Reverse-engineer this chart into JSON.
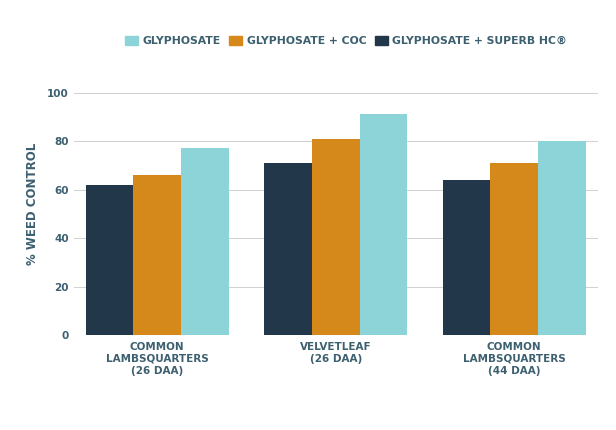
{
  "categories": [
    "COMMON\nLAMBSQUARTERS\n(26 DAA)",
    "VELVETLEAF\n(26 DAA)",
    "COMMON\nLAMBSQUARTERS\n(44 DAA)"
  ],
  "series": [
    {
      "label": "GLYPHOSATE",
      "color": "#22374a",
      "values": [
        62,
        71,
        64
      ]
    },
    {
      "label": "GLYPHOSATE + COC",
      "color": "#d4891a",
      "values": [
        66,
        81,
        71
      ]
    },
    {
      "label": "GLYPHOSATE + SUPERB HC®",
      "color": "#8dd4d8",
      "values": [
        77,
        91,
        80
      ]
    }
  ],
  "legend_order": [
    2,
    1,
    0
  ],
  "legend_colors": [
    "#8dd4d8",
    "#d4891a",
    "#22374a"
  ],
  "legend_labels": [
    "GLYPHOSATE",
    "GLYPHOSATE + COC",
    "GLYPHOSATE + SUPERB HC®"
  ],
  "ylabel": "% WEED CONTROL",
  "ylim": [
    0,
    108
  ],
  "yticks": [
    0,
    20,
    40,
    60,
    80,
    100
  ],
  "background_color": "#ffffff",
  "grid_color": "#d0d0d0",
  "bar_width": 0.2,
  "group_positions": [
    0.35,
    1.1,
    1.85
  ],
  "legend_fontsize": 7.8,
  "axis_label_fontsize": 8.5,
  "tick_fontsize": 7.5,
  "text_color": "#3d6070"
}
